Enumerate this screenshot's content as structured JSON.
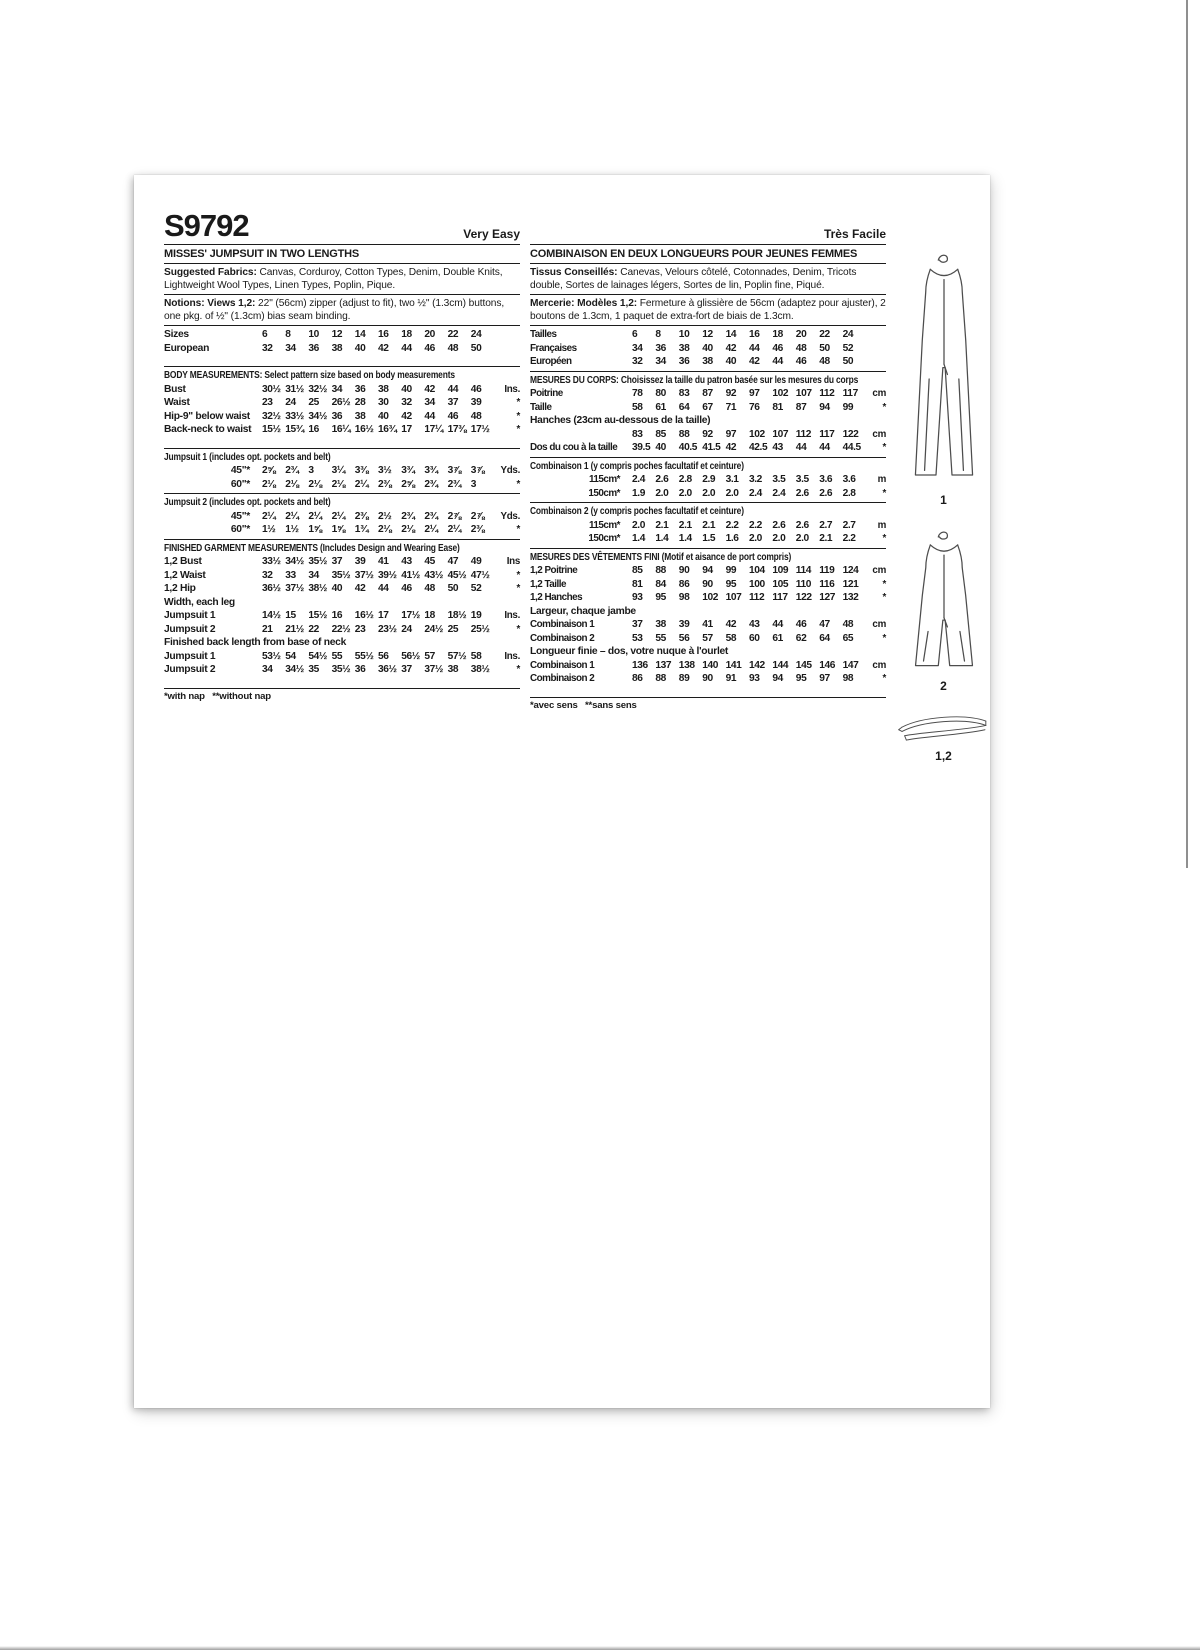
{
  "header": {
    "sku": "S9792",
    "difficulty_en": "Very Easy",
    "difficulty_fr": "Très Facile"
  },
  "illustrations": {
    "view1_label": "1",
    "view2_label": "2",
    "belt_label": "1,2"
  },
  "en": {
    "blocks": [
      {
        "t": "hr"
      },
      {
        "t": "head",
        "text": "MISSES' JUMPSUIT IN TWO LENGTHS"
      },
      {
        "t": "hr"
      },
      {
        "t": "para",
        "lead": "Suggested Fabrics:",
        "text": "Canvas, Corduroy, Cotton Types, Denim, Double Knits, Lightweight Wool Types, Linen Types, Poplin, Pique."
      },
      {
        "t": "hr"
      },
      {
        "t": "para",
        "lead": "Notions: Views 1,2:",
        "text": "22\" (56cm) zipper (adjust to fit), two ½\" (1.3cm) buttons, one pkg. of ½\" (1.3cm) bias seam binding."
      },
      {
        "t": "hr"
      },
      {
        "t": "row",
        "label": "Sizes",
        "cells": [
          "6",
          "8",
          "10",
          "12",
          "14",
          "16",
          "18",
          "20",
          "22",
          "24"
        ],
        "unit": ""
      },
      {
        "t": "row",
        "label": "European",
        "cells": [
          "32",
          "34",
          "36",
          "38",
          "40",
          "42",
          "44",
          "46",
          "48",
          "50"
        ],
        "unit": ""
      },
      {
        "t": "gap"
      },
      {
        "t": "hr"
      },
      {
        "t": "head2",
        "text": "BODY MEASUREMENTS: Select pattern size based on body measurements"
      },
      {
        "t": "row",
        "label": "Bust",
        "cells": [
          "30½",
          "31½",
          "32½",
          "34",
          "36",
          "38",
          "40",
          "42",
          "44",
          "46"
        ],
        "unit": "Ins."
      },
      {
        "t": "row",
        "label": "Waist",
        "cells": [
          "23",
          "24",
          "25",
          "26½",
          "28",
          "30",
          "32",
          "34",
          "37",
          "39"
        ],
        "unit": "*"
      },
      {
        "t": "row",
        "label": "Hip-9\" below waist",
        "cells": [
          "32½",
          "33½",
          "34½",
          "36",
          "38",
          "40",
          "42",
          "44",
          "46",
          "48"
        ],
        "unit": "*"
      },
      {
        "t": "row",
        "label": "Back-neck to waist",
        "cells": [
          "15½",
          "15¾",
          "16",
          "16¼",
          "16½",
          "16¾",
          "17",
          "17¼",
          "17⅜",
          "17½"
        ],
        "unit": "*"
      },
      {
        "t": "gap"
      },
      {
        "t": "hr"
      },
      {
        "t": "head2",
        "text": "Jumpsuit 1 (includes opt. pockets and belt)"
      },
      {
        "t": "row",
        "label": "45\"*",
        "indent": true,
        "cells": [
          "2⅝",
          "2¾",
          "3",
          "3¼",
          "3⅜",
          "3½",
          "3¾",
          "3¾",
          "3⅞",
          "3⅞"
        ],
        "unit": "Yds."
      },
      {
        "t": "row",
        "label": "60\"*",
        "indent": true,
        "cells": [
          "2⅛",
          "2⅛",
          "2⅛",
          "2⅛",
          "2¼",
          "2⅜",
          "2⅝",
          "2¾",
          "2¾",
          "3"
        ],
        "unit": "*"
      },
      {
        "t": "hr"
      },
      {
        "t": "head2",
        "text": "Jumpsuit 2 (includes opt. pockets and belt)"
      },
      {
        "t": "row",
        "label": "45\"*",
        "indent": true,
        "cells": [
          "2¼",
          "2¼",
          "2¼",
          "2¼",
          "2⅜",
          "2½",
          "2¾",
          "2¾",
          "2⅞",
          "2⅞"
        ],
        "unit": "Yds."
      },
      {
        "t": "row",
        "label": "60\"*",
        "indent": true,
        "cells": [
          "1½",
          "1½",
          "1⅝",
          "1⅝",
          "1¾",
          "2⅛",
          "2⅛",
          "2¼",
          "2¼",
          "2⅜"
        ],
        "unit": "*"
      },
      {
        "t": "hr"
      },
      {
        "t": "head2",
        "text": "FINISHED GARMENT MEASUREMENTS (Includes Design and Wearing Ease)"
      },
      {
        "t": "row",
        "label": "1,2 Bust",
        "cells": [
          "33½",
          "34½",
          "35½",
          "37",
          "39",
          "41",
          "43",
          "45",
          "47",
          "49"
        ],
        "unit": "Ins"
      },
      {
        "t": "row",
        "label": "1,2 Waist",
        "cells": [
          "32",
          "33",
          "34",
          "35½",
          "37½",
          "39½",
          "41½",
          "43½",
          "45½",
          "47½"
        ],
        "unit": "*"
      },
      {
        "t": "row",
        "label": "1,2 Hip",
        "cells": [
          "36½",
          "37½",
          "38½",
          "40",
          "42",
          "44",
          "46",
          "48",
          "50",
          "52"
        ],
        "unit": "*"
      },
      {
        "t": "sub",
        "text": "Width, each leg"
      },
      {
        "t": "row",
        "label": "Jumpsuit 1",
        "cells": [
          "14½",
          "15",
          "15½",
          "16",
          "16½",
          "17",
          "17½",
          "18",
          "18½",
          "19"
        ],
        "unit": "Ins."
      },
      {
        "t": "row",
        "label": "Jumpsuit 2",
        "cells": [
          "21",
          "21½",
          "22",
          "22½",
          "23",
          "23½",
          "24",
          "24½",
          "25",
          "25½"
        ],
        "unit": "*"
      },
      {
        "t": "sub",
        "text": "Finished back length from base of neck"
      },
      {
        "t": "row",
        "label": "Jumpsuit 1",
        "cells": [
          "53½",
          "54",
          "54½",
          "55",
          "55½",
          "56",
          "56½",
          "57",
          "57½",
          "58"
        ],
        "unit": "Ins."
      },
      {
        "t": "row",
        "label": "Jumpsuit 2",
        "cells": [
          "34",
          "34½",
          "35",
          "35½",
          "36",
          "36½",
          "37",
          "37½",
          "38",
          "38½"
        ],
        "unit": "*"
      },
      {
        "t": "gap"
      },
      {
        "t": "hr"
      },
      {
        "t": "note",
        "text": "*with nap   **without nap"
      }
    ]
  },
  "fr": {
    "blocks": [
      {
        "t": "hr"
      },
      {
        "t": "head",
        "text": "COMBINAISON EN DEUX LONGUEURS POUR JEUNES FEMMES"
      },
      {
        "t": "hr"
      },
      {
        "t": "para",
        "lead": "Tissus Conseillés:",
        "text": "Canevas, Velours côtelé, Cotonnades, Denim, Tricots double, Sortes de lainages légers, Sortes de lin, Poplin fine, Piqué."
      },
      {
        "t": "hr"
      },
      {
        "t": "para",
        "lead": "Mercerie: Modèles 1,2:",
        "text": "Fermeture à glissière de 56cm (adaptez pour ajuster), 2 boutons de 1.3cm, 1 paquet de extra-fort de biais de 1.3cm."
      },
      {
        "t": "hr"
      },
      {
        "t": "row",
        "label": "Tailles",
        "cells": [
          "6",
          "8",
          "10",
          "12",
          "14",
          "16",
          "18",
          "20",
          "22",
          "24"
        ],
        "unit": ""
      },
      {
        "t": "row",
        "label": "Françaises",
        "cells": [
          "34",
          "36",
          "38",
          "40",
          "42",
          "44",
          "46",
          "48",
          "50",
          "52"
        ],
        "unit": ""
      },
      {
        "t": "row",
        "label": "Européen",
        "cells": [
          "32",
          "34",
          "36",
          "38",
          "40",
          "42",
          "44",
          "46",
          "48",
          "50"
        ],
        "unit": ""
      },
      {
        "t": "hr"
      },
      {
        "t": "head2",
        "text": "MESURES DU CORPS: Choisissez la taille du patron basée sur les mesures du corps"
      },
      {
        "t": "row",
        "label": "Poitrine",
        "cells": [
          "78",
          "80",
          "83",
          "87",
          "92",
          "97",
          "102",
          "107",
          "112",
          "117"
        ],
        "unit": "cm"
      },
      {
        "t": "row",
        "label": "Taille",
        "cells": [
          "58",
          "61",
          "64",
          "67",
          "71",
          "76",
          "81",
          "87",
          "94",
          "99"
        ],
        "unit": "*"
      },
      {
        "t": "sub",
        "text": "Hanches (23cm au-dessous de la taille)"
      },
      {
        "t": "row",
        "label": "",
        "cells": [
          "83",
          "85",
          "88",
          "92",
          "97",
          "102",
          "107",
          "112",
          "117",
          "122"
        ],
        "unit": "cm"
      },
      {
        "t": "row",
        "label": "Dos du cou à la taille",
        "cells": [
          "39.5",
          "40",
          "40.5",
          "41.5",
          "42",
          "42.5",
          "43",
          "44",
          "44",
          "44.5"
        ],
        "unit": "*"
      },
      {
        "t": "hr"
      },
      {
        "t": "head2",
        "text": "Combinaison 1 (y compris poches facultatif et ceinture)"
      },
      {
        "t": "row",
        "label": "115cm*",
        "indent": true,
        "cells": [
          "2.4",
          "2.6",
          "2.8",
          "2.9",
          "3.1",
          "3.2",
          "3.5",
          "3.5",
          "3.6",
          "3.6"
        ],
        "unit": "m"
      },
      {
        "t": "row",
        "label": "150cm*",
        "indent": true,
        "cells": [
          "1.9",
          "2.0",
          "2.0",
          "2.0",
          "2.0",
          "2.4",
          "2.4",
          "2.6",
          "2.6",
          "2.8"
        ],
        "unit": "*"
      },
      {
        "t": "hr"
      },
      {
        "t": "head2",
        "text": "Combinaison 2 (y compris poches facultatif et ceinture)"
      },
      {
        "t": "row",
        "label": "115cm*",
        "indent": true,
        "cells": [
          "2.0",
          "2.1",
          "2.1",
          "2.1",
          "2.2",
          "2.2",
          "2.6",
          "2.6",
          "2.7",
          "2.7"
        ],
        "unit": "m"
      },
      {
        "t": "row",
        "label": "150cm*",
        "indent": true,
        "cells": [
          "1.4",
          "1.4",
          "1.4",
          "1.5",
          "1.6",
          "2.0",
          "2.0",
          "2.0",
          "2.1",
          "2.2"
        ],
        "unit": "*"
      },
      {
        "t": "hr"
      },
      {
        "t": "head2",
        "text": "MESURES DES VÊTEMENTS FINI (Motif et aisance de port compris)"
      },
      {
        "t": "row",
        "label": "1,2 Poitrine",
        "cells": [
          "85",
          "88",
          "90",
          "94",
          "99",
          "104",
          "109",
          "114",
          "119",
          "124"
        ],
        "unit": "cm"
      },
      {
        "t": "row",
        "label": "1,2 Taille",
        "cells": [
          "81",
          "84",
          "86",
          "90",
          "95",
          "100",
          "105",
          "110",
          "116",
          "121"
        ],
        "unit": "*"
      },
      {
        "t": "row",
        "label": "1,2 Hanches",
        "cells": [
          "93",
          "95",
          "98",
          "102",
          "107",
          "112",
          "117",
          "122",
          "127",
          "132"
        ],
        "unit": "*"
      },
      {
        "t": "sub",
        "text": "Largeur, chaque jambe"
      },
      {
        "t": "row",
        "label": "Combinaison 1",
        "cells": [
          "37",
          "38",
          "39",
          "41",
          "42",
          "43",
          "44",
          "46",
          "47",
          "48"
        ],
        "unit": "cm"
      },
      {
        "t": "row",
        "label": "Combinaison 2",
        "cells": [
          "53",
          "55",
          "56",
          "57",
          "58",
          "60",
          "61",
          "62",
          "64",
          "65"
        ],
        "unit": "*"
      },
      {
        "t": "sub",
        "text": "Longueur finie – dos, votre nuque à l'ourlet"
      },
      {
        "t": "row",
        "label": "Combinaison 1",
        "cells": [
          "136",
          "137",
          "138",
          "140",
          "141",
          "142",
          "144",
          "145",
          "146",
          "147"
        ],
        "unit": "cm"
      },
      {
        "t": "row",
        "label": "Combinaison 2",
        "cells": [
          "86",
          "88",
          "89",
          "90",
          "91",
          "93",
          "94",
          "95",
          "97",
          "98"
        ],
        "unit": "*"
      },
      {
        "t": "gap"
      },
      {
        "t": "hr"
      },
      {
        "t": "note",
        "text": "*avec sens   **sans sens"
      }
    ]
  }
}
